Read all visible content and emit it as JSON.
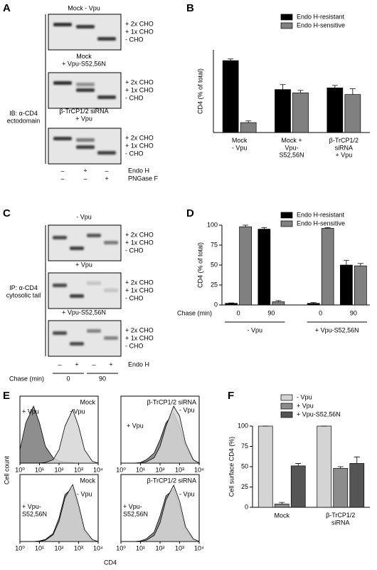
{
  "panels": {
    "A": {
      "letter": "A",
      "blots": [
        {
          "title": "Mock - Vpu"
        },
        {
          "title": "Mock\n+ Vpu-S52,56N"
        },
        {
          "title": "β-TrCP1/2 siRNA\n+ Vpu"
        }
      ],
      "band_labels": [
        "+ 2x CHO",
        "+ 1x CHO",
        "- CHO"
      ],
      "side_label": "IB: α-CD4\nectodomain",
      "treatments": [
        {
          "name": "Endo H",
          "signs": [
            "–",
            "+",
            "–"
          ]
        },
        {
          "name": "PNGase F",
          "signs": [
            "–",
            "–",
            "+"
          ]
        }
      ]
    },
    "C": {
      "letter": "C",
      "blots": [
        {
          "title": "- Vpu"
        },
        {
          "title": "+ Vpu"
        },
        {
          "title": "+ Vpu-S52,56N"
        }
      ],
      "band_labels": [
        "+ 2x CHO",
        "+ 1x CHO",
        "- CHO"
      ],
      "side_label": "IP: α-CD4\ncytosolic tail",
      "treatments": [
        {
          "name": "Endo H",
          "signs": [
            "–",
            "+",
            "–",
            "+"
          ]
        }
      ],
      "chase_label": "Chase (min)",
      "chase_times": [
        "0",
        "90"
      ]
    },
    "E": {
      "letter": "E",
      "x_label": "CD4",
      "y_label": "Cell count"
    }
  },
  "chart_data": [
    {
      "type": "bar",
      "panel_label": "B",
      "y_label": "CD4 (% of total)",
      "categories": [
        "Mock\n- Vpu",
        "Mock +\nVpu-\nS52,56N",
        "β-TrCP1/2\nsiRNA\n+ Vpu"
      ],
      "series": [
        {
          "name": "Endo H-resistant",
          "color": "#000000",
          "values": [
            87,
            52,
            54
          ],
          "errors": [
            2,
            6,
            3
          ]
        },
        {
          "name": "Endo H-sensitive",
          "color": "#808080",
          "values": [
            12,
            48,
            46
          ],
          "errors": [
            2,
            3,
            7
          ]
        }
      ],
      "ylim": [
        0,
        100
      ],
      "legend": "upper right"
    },
    {
      "type": "bar",
      "panel_label": "D",
      "y_label": "CD4 (% of total)",
      "x_label": "Chase (min)",
      "categories": [
        "0",
        "90",
        "0",
        "90"
      ],
      "groups": [
        "- Vpu",
        "+ Vpu-S52,56N"
      ],
      "series": [
        {
          "name": "Endo H-resistant",
          "color": "#000000",
          "values": [
            2,
            95,
            2,
            50
          ],
          "errors": [
            0.5,
            2,
            1,
            6
          ]
        },
        {
          "name": "Endo H-sensitive",
          "color": "#808080",
          "values": [
            98,
            4,
            96,
            49
          ],
          "errors": [
            2,
            1.5,
            1,
            3
          ]
        }
      ],
      "ylim": [
        0,
        100
      ],
      "yticks": [
        0,
        25,
        50,
        75,
        100
      ],
      "legend": "upper right"
    },
    {
      "type": "bar",
      "panel_label": "F",
      "y_label": "Cell surface CD4 (%)",
      "categories": [
        "Mock",
        "β-TrCP1/2\nsiRNA"
      ],
      "series": [
        {
          "name": "- Vpu",
          "color": "#d4d4d4",
          "values": [
            100,
            100
          ],
          "errors": [
            0,
            0
          ]
        },
        {
          "name": "+ Vpu",
          "color": "#8c8c8c",
          "values": [
            4,
            48
          ],
          "errors": [
            2,
            2
          ]
        },
        {
          "name": "+ Vpu-S52,56N",
          "color": "#555555",
          "values": [
            51,
            54
          ],
          "errors": [
            3,
            8
          ]
        }
      ],
      "ylim": [
        0,
        100
      ],
      "yticks": [
        0,
        25,
        50,
        75,
        100
      ],
      "legend": "upper right"
    },
    {
      "type": "area",
      "title": "Mock",
      "xscale": "log",
      "x": [
        1,
        2,
        5,
        10,
        20,
        50,
        100,
        200,
        500,
        1000,
        2000,
        5000,
        10000
      ],
      "series": [
        {
          "name": "+ Vpu",
          "color": "#7a7a7a",
          "values": [
            20,
            60,
            85,
            60,
            25,
            8,
            3,
            2,
            1,
            0,
            0,
            0,
            0
          ]
        },
        {
          "name": "- Vpu",
          "color": "#d6d6d6",
          "values": [
            0,
            0,
            0,
            0,
            1,
            5,
            20,
            55,
            80,
            55,
            20,
            3,
            0
          ]
        }
      ],
      "xlim": [
        1,
        10000
      ],
      "ylim": [
        0,
        100
      ],
      "xticks": [
        {
          "value": 1,
          "label": "10⁰"
        },
        {
          "value": 10,
          "label": "10¹"
        },
        {
          "value": 100,
          "label": "10²"
        },
        {
          "value": 1000,
          "label": "10³"
        },
        {
          "value": 10000,
          "label": "10⁴"
        }
      ]
    },
    {
      "type": "area",
      "title": "β-TrCP1/2 siRNA",
      "xscale": "log",
      "x": [
        1,
        2,
        5,
        10,
        20,
        50,
        100,
        200,
        500,
        1000,
        2000,
        5000,
        10000
      ],
      "series": [
        {
          "name": "+ Vpu",
          "color": "#7a7a7a",
          "values": [
            0,
            0,
            0,
            1,
            5,
            15,
            35,
            60,
            75,
            55,
            25,
            5,
            0
          ]
        },
        {
          "name": "- Vpu",
          "color": "#d6d6d6",
          "values": [
            0,
            0,
            0,
            0,
            2,
            8,
            25,
            55,
            85,
            70,
            30,
            5,
            0
          ]
        }
      ],
      "xlim": [
        1,
        10000
      ],
      "ylim": [
        0,
        100
      ],
      "xticks": [
        {
          "value": 1,
          "label": "10⁰"
        },
        {
          "value": 10,
          "label": "10¹"
        },
        {
          "value": 100,
          "label": "10²"
        },
        {
          "value": 1000,
          "label": "10³"
        },
        {
          "value": 10000,
          "label": "10⁴"
        }
      ]
    },
    {
      "type": "area",
      "title": "Mock",
      "xscale": "log",
      "x": [
        1,
        2,
        5,
        10,
        20,
        50,
        100,
        200,
        500,
        1000,
        2000,
        5000,
        10000
      ],
      "series": [
        {
          "name": "+ Vpu-\nS52,56N",
          "color": "#7a7a7a",
          "values": [
            0,
            0,
            0,
            1,
            3,
            12,
            35,
            70,
            80,
            50,
            15,
            2,
            0
          ]
        },
        {
          "name": "- Vpu",
          "color": "#d6d6d6",
          "values": [
            0,
            0,
            0,
            0,
            2,
            10,
            30,
            65,
            85,
            55,
            18,
            3,
            0
          ]
        }
      ],
      "xlim": [
        1,
        10000
      ],
      "ylim": [
        0,
        100
      ],
      "xticks": [
        {
          "value": 1,
          "label": "10⁰"
        },
        {
          "value": 10,
          "label": "10¹"
        },
        {
          "value": 100,
          "label": "10²"
        },
        {
          "value": 1000,
          "label": "10³"
        },
        {
          "value": 10000,
          "label": "10⁴"
        }
      ]
    },
    {
      "type": "area",
      "title": "β-TrCP1/2 siRNA",
      "xscale": "log",
      "x": [
        1,
        2,
        5,
        10,
        20,
        50,
        100,
        200,
        500,
        1000,
        2000,
        5000,
        10000
      ],
      "series": [
        {
          "name": "+ Vpu-\nS52,56N",
          "color": "#7a7a7a",
          "values": [
            0,
            0,
            0,
            1,
            4,
            14,
            38,
            68,
            78,
            52,
            18,
            3,
            0
          ]
        },
        {
          "name": "- Vpu",
          "color": "#d6d6d6",
          "values": [
            0,
            0,
            0,
            0,
            2,
            9,
            28,
            62,
            84,
            60,
            22,
            4,
            0
          ]
        }
      ],
      "xlim": [
        1,
        10000
      ],
      "ylim": [
        0,
        100
      ],
      "xticks": [
        {
          "value": 1,
          "label": "10⁰"
        },
        {
          "value": 10,
          "label": "10¹"
        },
        {
          "value": 100,
          "label": "10²"
        },
        {
          "value": 1000,
          "label": "10³"
        },
        {
          "value": 10000,
          "label": "10⁴"
        }
      ]
    }
  ]
}
